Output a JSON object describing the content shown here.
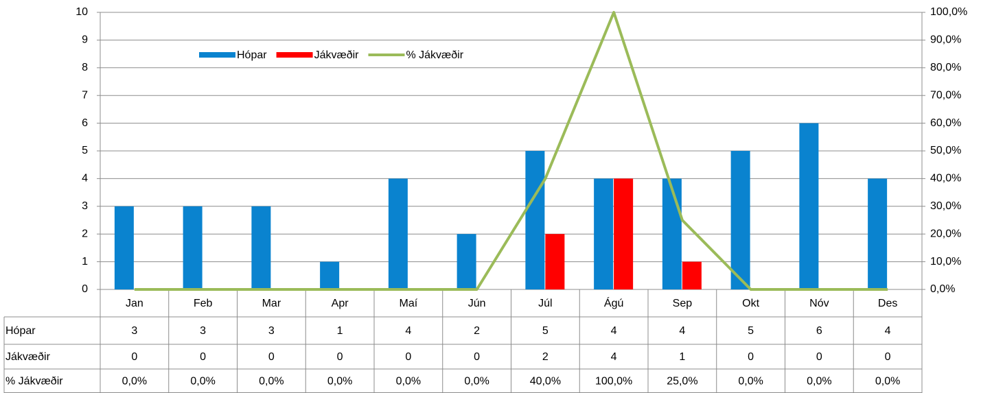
{
  "chart_data": {
    "type": "bar-line-table",
    "categories": [
      "Jan",
      "Feb",
      "Mar",
      "Apr",
      "Maí",
      "Jún",
      "Júl",
      "Ágú",
      "Sep",
      "Okt",
      "Nóv",
      "Des"
    ],
    "series": [
      {
        "name": "Hópar",
        "color": "#0a83cf",
        "type": "bar",
        "values": [
          3,
          3,
          3,
          1,
          4,
          2,
          5,
          4,
          4,
          5,
          6,
          4
        ]
      },
      {
        "name": "Jákvæðir",
        "color": "#ff0000",
        "type": "bar",
        "values": [
          0,
          0,
          0,
          0,
          0,
          0,
          2,
          4,
          1,
          0,
          0,
          0
        ]
      },
      {
        "name": "% Jákvæðir",
        "color": "#9bbb59",
        "type": "line",
        "axis": "y2",
        "values": [
          0,
          0,
          0,
          0,
          0,
          0,
          40,
          100,
          25,
          0,
          0,
          0
        ],
        "value_labels": [
          "0,0%",
          "0,0%",
          "0,0%",
          "0,0%",
          "0,0%",
          "0,0%",
          "40,0%",
          "100,0%",
          "25,0%",
          "0,0%",
          "0,0%",
          "0,0%"
        ]
      }
    ],
    "ylim": [
      0,
      10
    ],
    "yticks": [
      0,
      1,
      2,
      3,
      4,
      5,
      6,
      7,
      8,
      9,
      10
    ],
    "y2lim": [
      0,
      100
    ],
    "y2ticks": [
      {
        "value": 0,
        "label": "0,0%"
      },
      {
        "value": 10,
        "label": "10,0%"
      },
      {
        "value": 20,
        "label": "20,0%"
      },
      {
        "value": 30,
        "label": "30,0%"
      },
      {
        "value": 40,
        "label": "40,0%"
      },
      {
        "value": 50,
        "label": "50,0%"
      },
      {
        "value": 60,
        "label": "60,0%"
      },
      {
        "value": 70,
        "label": "70,0%"
      },
      {
        "value": 80,
        "label": "80,0%"
      },
      {
        "value": 90,
        "label": "90,0%"
      },
      {
        "value": 100,
        "label": "100,0%"
      }
    ],
    "grid": true,
    "legend": "top-left"
  }
}
